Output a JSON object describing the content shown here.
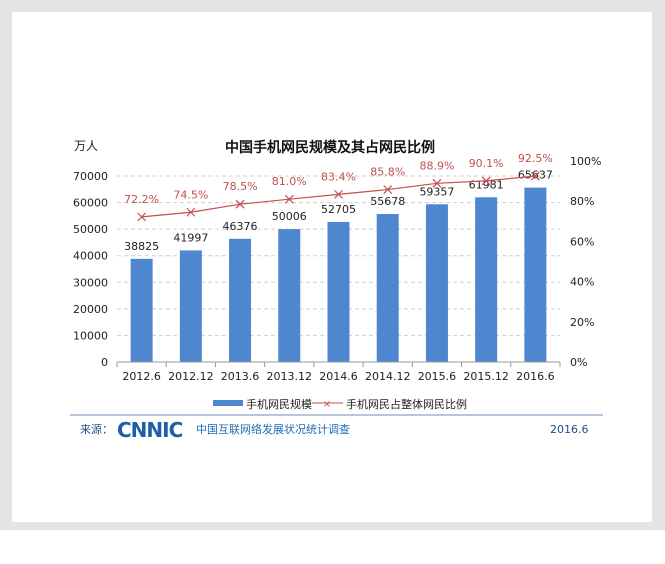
{
  "chart_data": {
    "type": "bar",
    "title": "中国手机网民规模及其占网民比例",
    "ylabel": "万人",
    "categories": [
      "2012.6",
      "2012.12",
      "2013.6",
      "2013.12",
      "2014.6",
      "2014.12",
      "2015.6",
      "2015.12",
      "2016.6"
    ],
    "series": [
      {
        "name": "手机网民规模",
        "type": "bar",
        "axis": "left",
        "color": "#4f86d0",
        "values": [
          38825,
          41997,
          46376,
          50006,
          52705,
          55678,
          59357,
          61981,
          65637
        ]
      },
      {
        "name": "手机网民占整体网民比例",
        "type": "line",
        "axis": "right",
        "color": "#c0504d",
        "marker": "x",
        "values": [
          72.2,
          74.5,
          78.5,
          81.0,
          83.4,
          85.8,
          88.9,
          90.1,
          92.5
        ],
        "labels": [
          "72.2%",
          "74.5%",
          "78.5%",
          "81.0%",
          "83.4%",
          "85.8%",
          "88.9%",
          "90.1%",
          "92.5%"
        ]
      }
    ],
    "ylim": [
      0,
      70000
    ],
    "yticks": [
      "0",
      "10000",
      "20000",
      "30000",
      "40000",
      "50000",
      "60000",
      "70000"
    ],
    "y2lim": [
      0,
      100
    ],
    "y2ticks": [
      "0%",
      "20%",
      "40%",
      "60%",
      "80%",
      "100%"
    ],
    "grid": true,
    "legend": "bottom"
  },
  "footer": {
    "source_label": "来源：",
    "logo": "CNNIC",
    "org": "中国互联网络发展状况统计调查",
    "date": "2016.6"
  }
}
